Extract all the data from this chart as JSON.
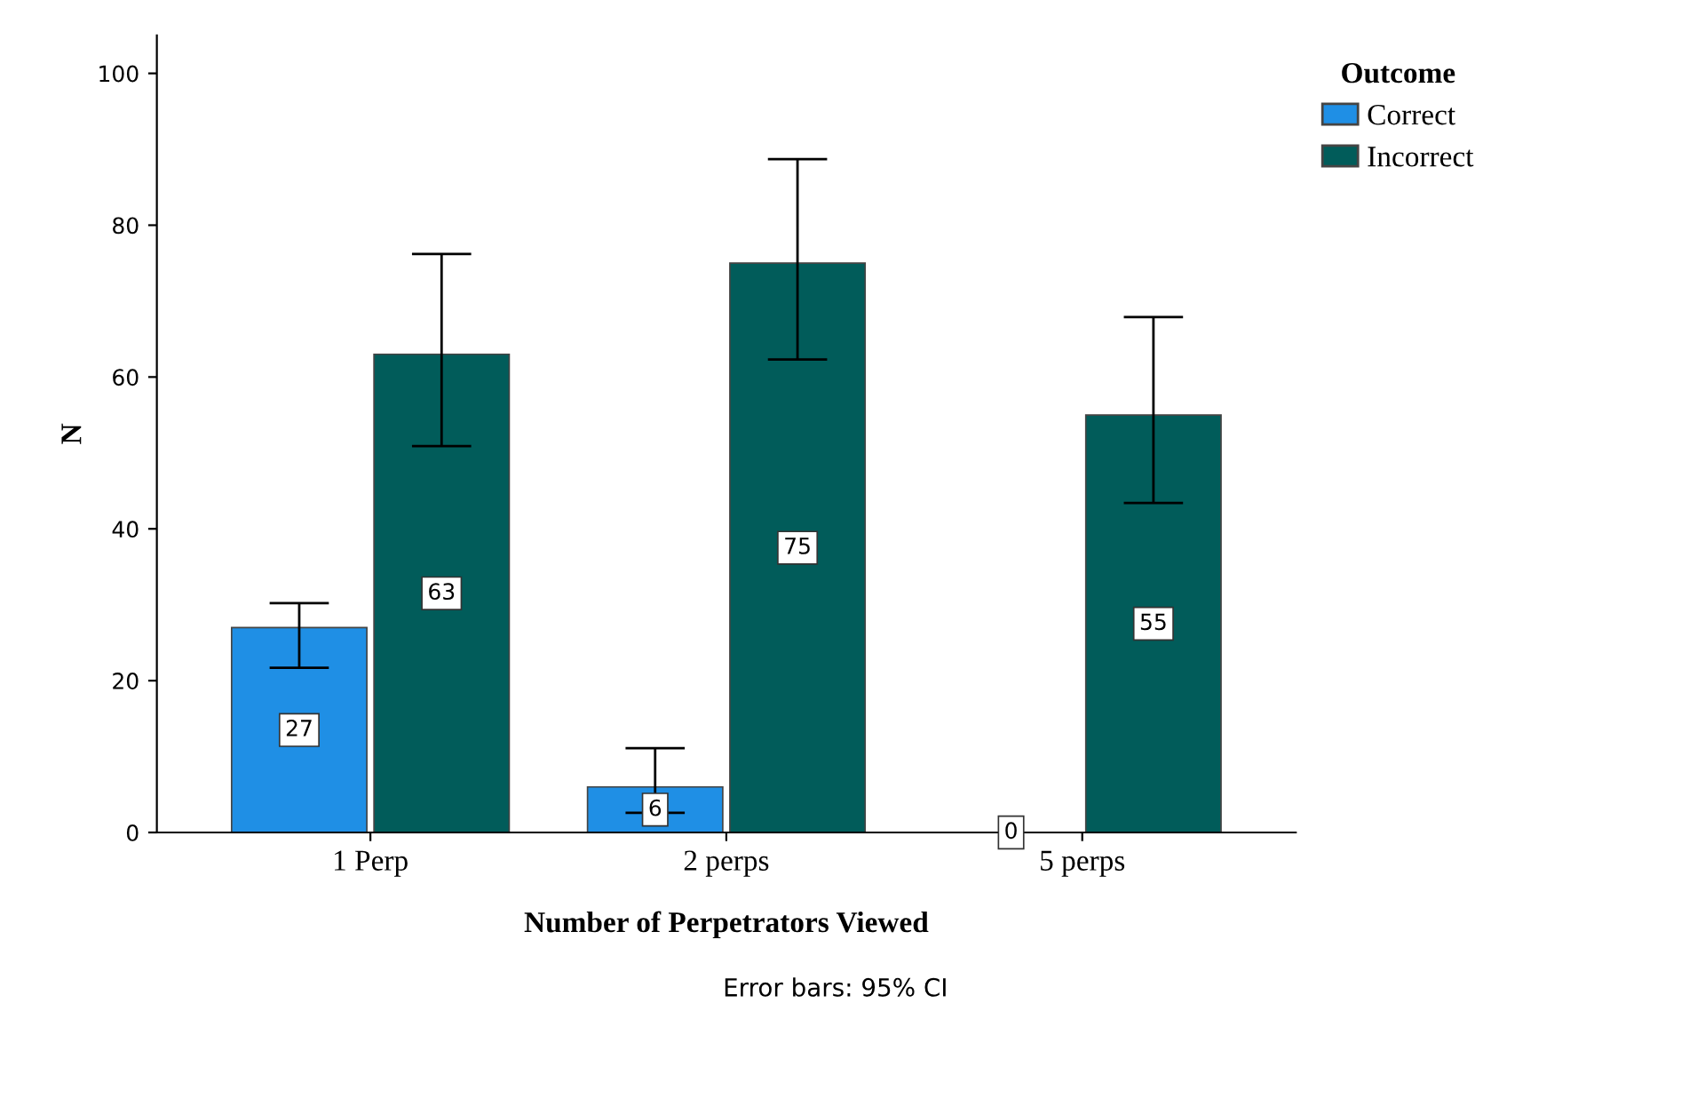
{
  "chart_data": {
    "type": "bar",
    "xlabel": "Number of Perpetrators Viewed",
    "ylabel": "N",
    "legend_title": "Outcome",
    "categories": [
      "1 Perp",
      "2 perps",
      "5 perps"
    ],
    "series": [
      {
        "name": "Correct",
        "color": "#1f8fe5",
        "values": [
          27,
          6,
          0
        ],
        "errors": [
          [
            21.7,
            30.2
          ],
          [
            2.6,
            11.1
          ],
          null
        ]
      },
      {
        "name": "Incorrect",
        "color": "#015c5a",
        "values": [
          63,
          75,
          55
        ],
        "errors": [
          [
            50.9,
            76.2
          ],
          [
            62.3,
            88.7
          ],
          [
            43.4,
            67.9
          ]
        ]
      }
    ],
    "ylim": [
      0,
      105
    ],
    "yticks": [
      0,
      20,
      40,
      60,
      80,
      100
    ],
    "data_labels": true,
    "legend": "top right",
    "grid": false,
    "annotations": [
      "Error bars: 95% CI"
    ]
  }
}
